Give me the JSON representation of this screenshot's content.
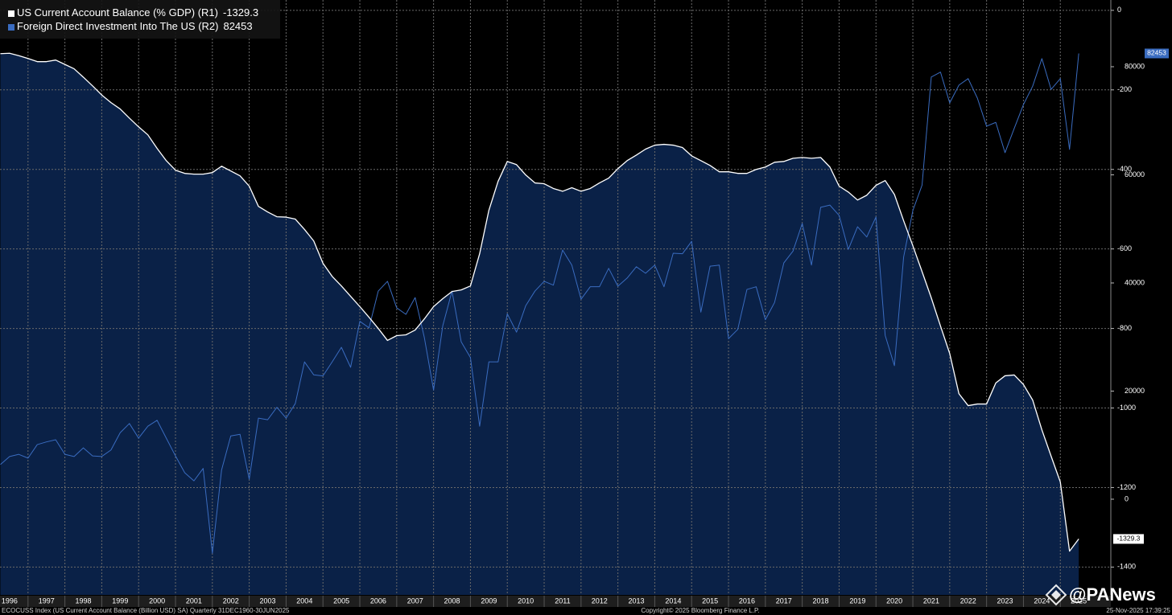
{
  "chart_data": {
    "type": "line",
    "x": [
      1996.25,
      1996.5,
      1996.75,
      1997,
      1997.25,
      1997.5,
      1997.75,
      1998,
      1998.25,
      1998.5,
      1998.75,
      1999,
      1999.25,
      1999.5,
      1999.75,
      2000,
      2000.25,
      2000.5,
      2000.75,
      2001,
      2001.25,
      2001.5,
      2001.75,
      2002,
      2002.25,
      2002.5,
      2002.75,
      2003,
      2003.25,
      2003.5,
      2003.75,
      2004,
      2004.25,
      2004.5,
      2004.75,
      2005,
      2005.25,
      2005.5,
      2005.75,
      2006,
      2006.25,
      2006.5,
      2006.75,
      2007,
      2007.25,
      2007.5,
      2007.75,
      2008,
      2008.25,
      2008.5,
      2008.75,
      2009,
      2009.25,
      2009.5,
      2009.75,
      2010,
      2010.25,
      2010.5,
      2010.75,
      2011,
      2011.25,
      2011.5,
      2011.75,
      2012,
      2012.25,
      2012.5,
      2012.75,
      2013,
      2013.25,
      2013.5,
      2013.75,
      2014,
      2014.25,
      2014.5,
      2014.75,
      2015,
      2015.25,
      2015.5,
      2015.75,
      2016,
      2016.25,
      2016.5,
      2016.75,
      2017,
      2017.25,
      2017.5,
      2017.75,
      2018,
      2018.25,
      2018.5,
      2018.75,
      2019,
      2019.25,
      2019.5,
      2019.75,
      2020,
      2020.25,
      2020.5,
      2020.75,
      2021,
      2021.25,
      2021.5,
      2021.75,
      2022,
      2022.25,
      2022.5,
      2022.75,
      2023,
      2023.25,
      2023.5,
      2023.75,
      2024,
      2024.25,
      2024.5,
      2024.75,
      2025,
      2025.25,
      2025.5
    ],
    "series": [
      {
        "name": "US Current Account Balance (% GDP)  (R1)",
        "color": "#ffffff",
        "fill": "#0a2147",
        "axis": "y",
        "values": [
          -109,
          -108,
          -114,
          -121,
          -129,
          -129,
          -125,
          -136,
          -147,
          -168,
          -190,
          -213,
          -232,
          -248,
          -271,
          -293,
          -313,
          -347,
          -378,
          -402,
          -410,
          -412,
          -412,
          -408,
          -392,
          -404,
          -416,
          -442,
          -493,
          -507,
          -519,
          -520,
          -525,
          -551,
          -580,
          -636,
          -669,
          -693,
          -719,
          -745,
          -772,
          -800,
          -830,
          -818,
          -816,
          -804,
          -776,
          -745,
          -725,
          -707,
          -703,
          -693,
          -612,
          -503,
          -430,
          -380,
          -388,
          -414,
          -434,
          -436,
          -448,
          -455,
          -446,
          -455,
          -448,
          -434,
          -422,
          -398,
          -378,
          -364,
          -349,
          -339,
          -337,
          -339,
          -345,
          -366,
          -378,
          -390,
          -406,
          -406,
          -410,
          -410,
          -400,
          -394,
          -382,
          -380,
          -372,
          -370,
          -372,
          -370,
          -394,
          -442,
          -457,
          -477,
          -465,
          -440,
          -428,
          -463,
          -529,
          -592,
          -657,
          -723,
          -794,
          -863,
          -964,
          -994,
          -990,
          -990,
          -937,
          -919,
          -917,
          -941,
          -980,
          -1055,
          -1121,
          -1186,
          -1360,
          -1329.3
        ]
      },
      {
        "name": "Foreign Direct Investment Into The US (R2)",
        "color": "#3a6cc0",
        "axis": "y2",
        "values": [
          6400,
          7900,
          8300,
          7600,
          10100,
          10600,
          11000,
          8300,
          7900,
          9500,
          8000,
          7900,
          9100,
          12300,
          14000,
          11300,
          13500,
          14600,
          11300,
          8000,
          4900,
          3400,
          5700,
          -10000,
          5400,
          11700,
          12000,
          3700,
          15000,
          14700,
          17000,
          15000,
          17700,
          25400,
          23000,
          22800,
          25400,
          28100,
          24400,
          32900,
          31700,
          38500,
          40300,
          35400,
          34200,
          37300,
          29900,
          20200,
          32100,
          38500,
          29100,
          26200,
          13500,
          25400,
          25400,
          34300,
          30900,
          35800,
          38500,
          40300,
          39600,
          46100,
          43300,
          37000,
          39300,
          39300,
          42700,
          39400,
          40900,
          43000,
          41800,
          43300,
          39300,
          45500,
          45400,
          47700,
          34600,
          43100,
          43300,
          29700,
          31400,
          38800,
          39300,
          33200,
          36400,
          43700,
          45900,
          51000,
          43300,
          54000,
          54400,
          52500,
          46200,
          50400,
          48500,
          52200,
          30300,
          24700,
          44800,
          53400,
          58100,
          78100,
          79000,
          73300,
          76600,
          77800,
          74200,
          69000,
          69700,
          64100,
          68600,
          73000,
          76400,
          81500,
          75800,
          77800,
          64700,
          82453
        ]
      }
    ],
    "xlim": [
      1996.24,
      2026.37
    ],
    "xticks": [
      1996,
      1997,
      1998,
      1999,
      2000,
      2001,
      2002,
      2003,
      2004,
      2005,
      2006,
      2007,
      2008,
      2009,
      2010,
      2011,
      2012,
      2013,
      2014,
      2015,
      2016,
      2017,
      2018,
      2019,
      2020,
      2021,
      2022,
      2023,
      2024,
      2025
    ],
    "ylim": [
      -1470,
      26
    ],
    "yticks": [
      0,
      -200,
      -400,
      -600,
      -800,
      -1000,
      -1200,
      -1400
    ],
    "y2lim": [
      -17700,
      92340
    ],
    "y2ticks": [
      0,
      20000,
      40000,
      60000,
      80000
    ],
    "grid": true,
    "legend": "top-left",
    "footer_left": "ECOCUSS Index (US Current Account Balance (Billion USD) SA) Quarterly 31DEC1960-30JUN2025",
    "footer_center": "Copyright© 2025 Bloomberg Finance L.P.",
    "footer_right": "25-Nov-2025 17:39:25",
    "watermark": "@PANews"
  }
}
